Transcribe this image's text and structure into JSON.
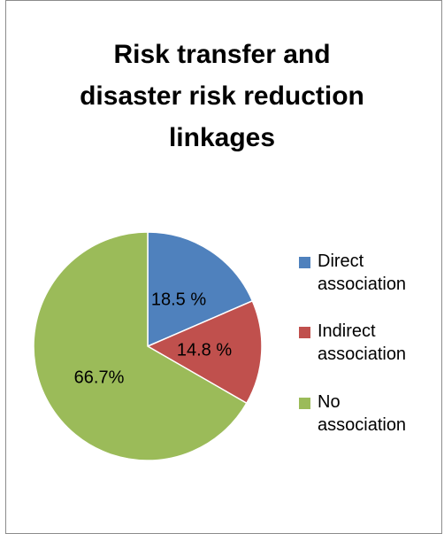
{
  "chart_data": {
    "type": "pie",
    "title": "Risk transfer and\ndisaster risk reduction\nlinkages",
    "start_angle_deg": 0,
    "direction": "clockwise",
    "legend_position": "right",
    "slices": [
      {
        "name": "Direct\nassociation",
        "value": 18.5,
        "label": "18.5 %",
        "color": "#4F81BD"
      },
      {
        "name": "Indirect\nassociation",
        "value": 14.8,
        "label": "14.8 %",
        "color": "#C0504D"
      },
      {
        "name": "No\nassociation",
        "value": 66.7,
        "label": "66.7%",
        "color": "#9BBB59"
      }
    ]
  }
}
